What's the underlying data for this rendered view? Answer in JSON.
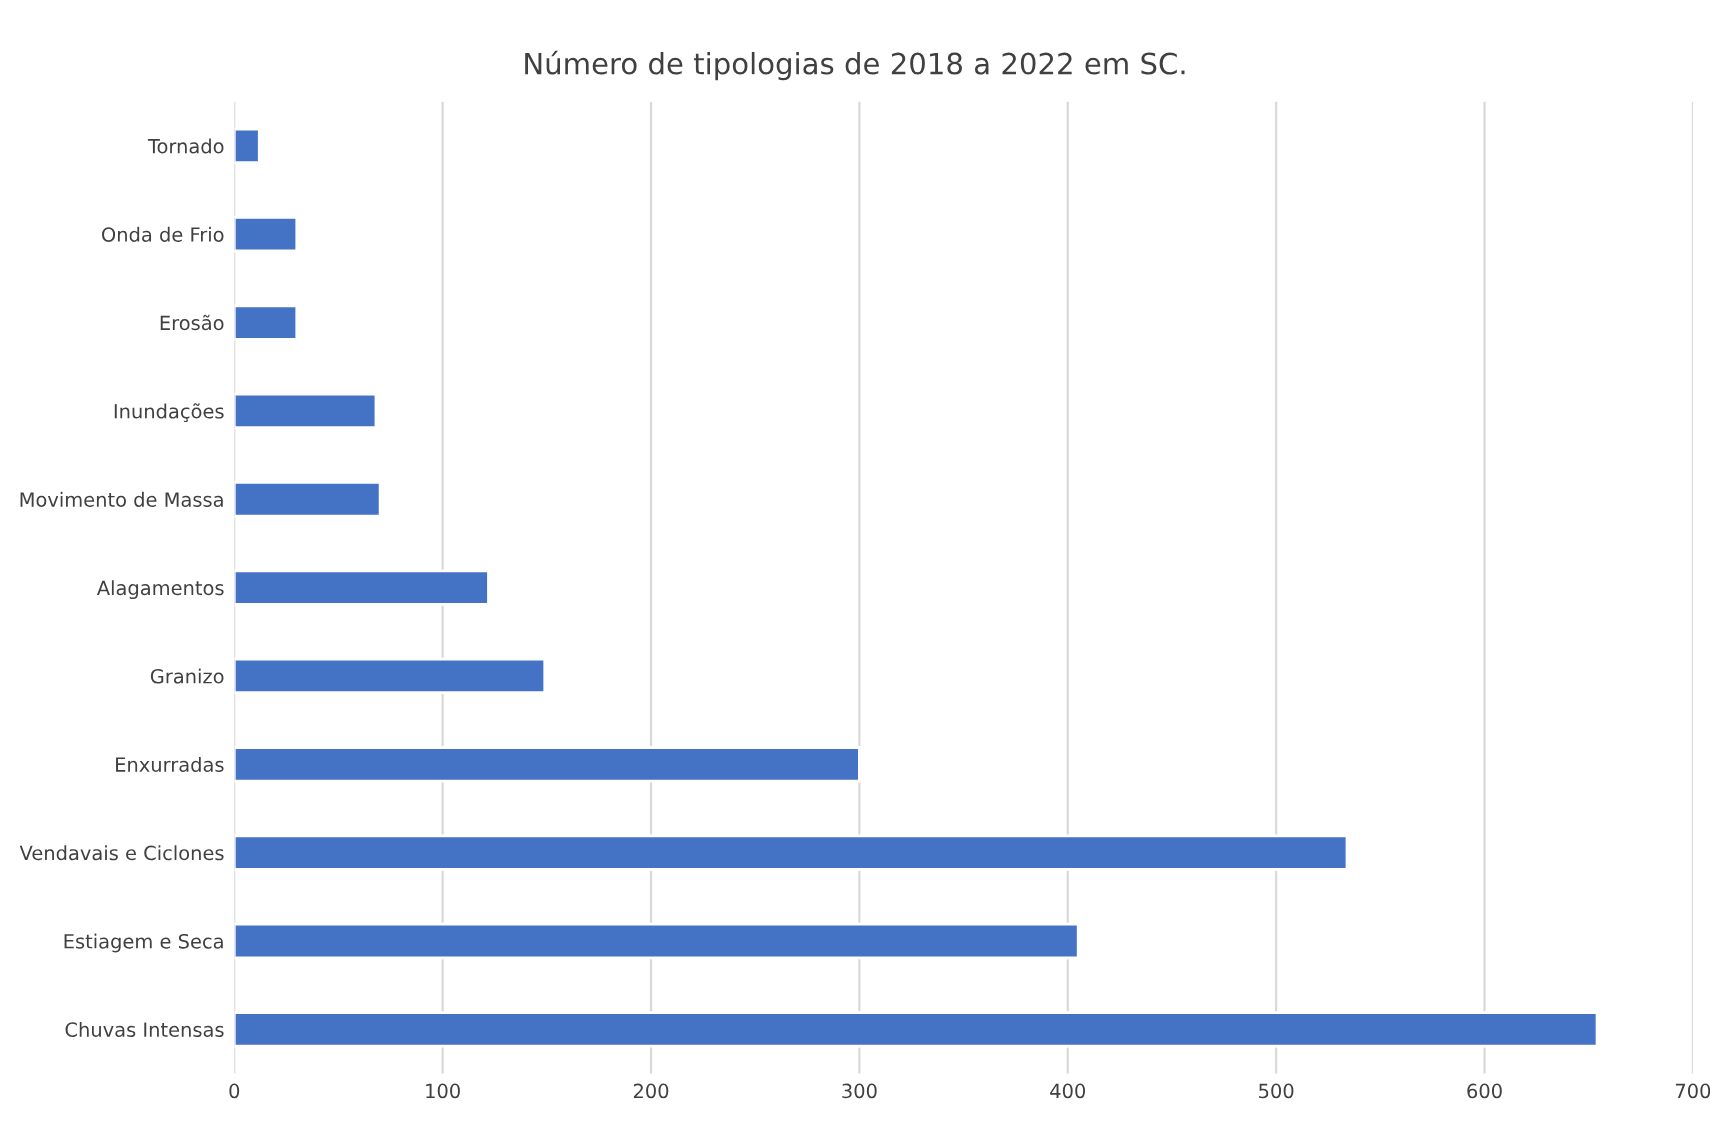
{
  "chart_data": {
    "type": "bar",
    "orientation": "horizontal",
    "title": "Número de tipologias de 2018 a 2022 em SC.",
    "categories": [
      "Tornado",
      "Onda de Frio",
      "Erosão",
      "Inundações",
      "Movimento de Massa",
      "Alagamentos",
      "Granizo",
      "Enxurradas",
      "Vendavais e Ciclones",
      "Estiagem e Seca",
      "Chuvas Intensas"
    ],
    "values": [
      12,
      30,
      30,
      68,
      70,
      122,
      149,
      300,
      534,
      405,
      654
    ],
    "color": "#4472c4",
    "xlim": [
      0,
      700
    ],
    "xticks": [
      0,
      100,
      200,
      300,
      400,
      500,
      600,
      700
    ],
    "grid": "x"
  }
}
